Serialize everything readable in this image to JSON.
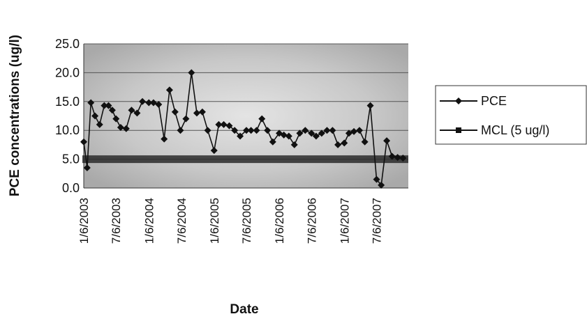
{
  "chart_data": {
    "type": "line",
    "title": "",
    "xlabel": "Date",
    "ylabel": "PCE concentrations (ug/l)",
    "ylim": [
      0,
      25
    ],
    "y_ticks": [
      "0.0",
      "5.0",
      "10.0",
      "15.0",
      "20.0",
      "25.0"
    ],
    "x_tick_labels": [
      "1/6/2003",
      "7/6/2003",
      "1/6/2004",
      "7/6/2004",
      "1/6/2005",
      "7/6/2005",
      "1/6/2006",
      "7/6/2006",
      "1/6/2007",
      "7/6/2007"
    ],
    "grid": true,
    "legend_position": "right",
    "series": [
      {
        "name": "PCE",
        "color": "#111111",
        "marker": "diamond",
        "x": [
          "2003-01-06",
          "2003-01-25",
          "2003-02-15",
          "2003-03-10",
          "2003-04-05",
          "2003-05-01",
          "2003-05-25",
          "2003-06-15",
          "2003-07-06",
          "2003-08-01",
          "2003-09-01",
          "2003-10-01",
          "2003-11-01",
          "2003-12-01",
          "2004-01-06",
          "2004-02-01",
          "2004-03-01",
          "2004-04-01",
          "2004-05-01",
          "2004-06-01",
          "2004-07-01",
          "2004-08-01",
          "2004-09-01",
          "2004-10-01",
          "2004-11-01",
          "2004-12-01",
          "2005-01-06",
          "2005-02-01",
          "2005-03-01",
          "2005-04-01",
          "2005-05-01",
          "2005-06-01",
          "2005-07-06",
          "2005-08-01",
          "2005-09-01",
          "2005-10-01",
          "2005-11-01",
          "2005-12-01",
          "2006-01-06",
          "2006-02-01",
          "2006-03-01",
          "2006-04-01",
          "2006-05-01",
          "2006-06-01",
          "2006-07-06",
          "2006-08-01",
          "2006-09-01",
          "2006-10-01",
          "2006-11-01",
          "2006-12-01",
          "2007-01-06",
          "2007-02-01",
          "2007-03-01",
          "2007-04-01",
          "2007-05-01",
          "2007-06-01",
          "2007-07-06",
          "2007-08-01",
          "2007-09-01",
          "2007-10-01",
          "2007-11-01",
          "2007-12-01"
        ],
        "values": [
          8.0,
          3.5,
          14.8,
          12.5,
          11.0,
          14.3,
          14.3,
          13.5,
          12.0,
          10.5,
          10.3,
          13.5,
          13.0,
          15.0,
          14.8,
          14.8,
          14.5,
          8.5,
          17.0,
          13.2,
          10.0,
          12.0,
          20.0,
          13.0,
          13.2,
          10.0,
          6.5,
          11.0,
          11.0,
          10.8,
          10.0,
          9.0,
          10.0,
          10.0,
          10.0,
          12.0,
          10.0,
          8.0,
          9.5,
          9.2,
          9.0,
          7.5,
          9.5,
          10.0,
          9.5,
          9.0,
          9.5,
          10.0,
          10.0,
          7.5,
          7.8,
          9.5,
          9.8,
          10.0,
          8.0,
          14.3,
          1.5,
          0.5,
          8.2,
          5.5,
          5.3,
          5.2
        ]
      },
      {
        "name": "MCL (5 ug/l)",
        "color": "#111111",
        "marker": "square",
        "x": [
          "2003-01-06",
          "2007-12-01"
        ],
        "values": [
          5.0,
          5.0
        ]
      }
    ]
  }
}
